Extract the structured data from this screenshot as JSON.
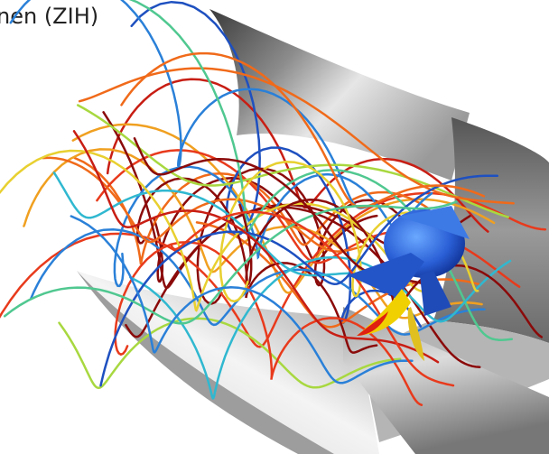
{
  "caption": "nen (ZIH)"
}
